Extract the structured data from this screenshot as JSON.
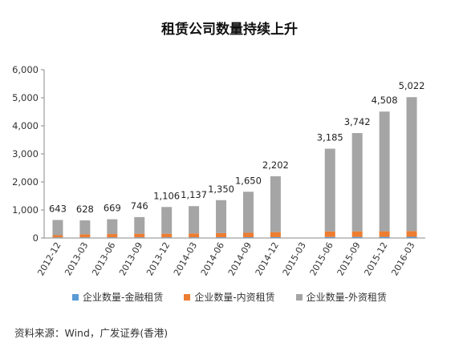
{
  "title": "租赁公司数量持续上升",
  "source": "资料来源：Wind，广发证券(香港)",
  "chart_data": {
    "type": "bar",
    "stacked": true,
    "title": "租赁公司数量持续上升",
    "categories": [
      "2012-12",
      "2013-03",
      "2013-06",
      "2013-09",
      "2013-12",
      "2014-03",
      "2014-06",
      "2014-09",
      "2014-12",
      "2015-03",
      "2015-06",
      "2015-09",
      "2015-12",
      "2016-03"
    ],
    "series": [
      {
        "name": "企业数量-金融租赁",
        "color": "#5b9bd5",
        "values": [
          20,
          21,
          22,
          23,
          23,
          24,
          25,
          26,
          30,
          null,
          35,
          38,
          40,
          42
        ]
      },
      {
        "name": "企业数量-内资租赁",
        "color": "#ed7d31",
        "values": [
          80,
          110,
          120,
          130,
          130,
          140,
          150,
          160,
          180,
          null,
          200,
          200,
          200,
          205
        ]
      },
      {
        "name": "企业数量-外资租赁",
        "color": "#a5a5a5",
        "values": [
          543,
          497,
          527,
          593,
          953,
          973,
          1175,
          1464,
          1992,
          null,
          2950,
          3504,
          4268,
          4775
        ]
      }
    ],
    "totals": [
      643,
      628,
      669,
      746,
      1106,
      1137,
      1350,
      1650,
      2202,
      null,
      3185,
      3742,
      4508,
      5022
    ],
    "total_labels": [
      "643",
      "628",
      "669",
      "746",
      "1,106",
      "1,137",
      "1,350",
      "1,650",
      "2,202",
      "",
      "3,185",
      "3,742",
      "4,508",
      "5,022"
    ],
    "ylim": [
      0,
      6000
    ],
    "yticks": [
      0,
      1000,
      2000,
      3000,
      4000,
      5000,
      6000
    ],
    "ytick_labels": [
      "0",
      "1,000",
      "2,000",
      "3,000",
      "4,000",
      "5,000",
      "6,000"
    ],
    "grid": false,
    "legend_position": "bottom"
  }
}
